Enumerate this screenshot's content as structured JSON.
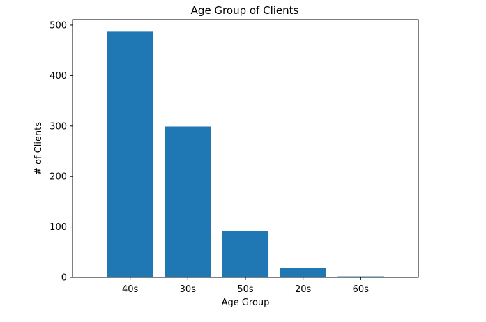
{
  "chart_data": {
    "type": "bar",
    "title": "Age Group of Clients",
    "xlabel": "Age Group",
    "ylabel": "# of Clients",
    "categories": [
      "40s",
      "30s",
      "50s",
      "20s",
      "60s"
    ],
    "values": [
      487,
      299,
      92,
      18,
      2
    ],
    "ylim": [
      0,
      511
    ],
    "yticks": [
      0,
      100,
      200,
      300,
      400,
      500
    ],
    "bar_color": "#1f77b4",
    "grid": false,
    "legend": false
  }
}
